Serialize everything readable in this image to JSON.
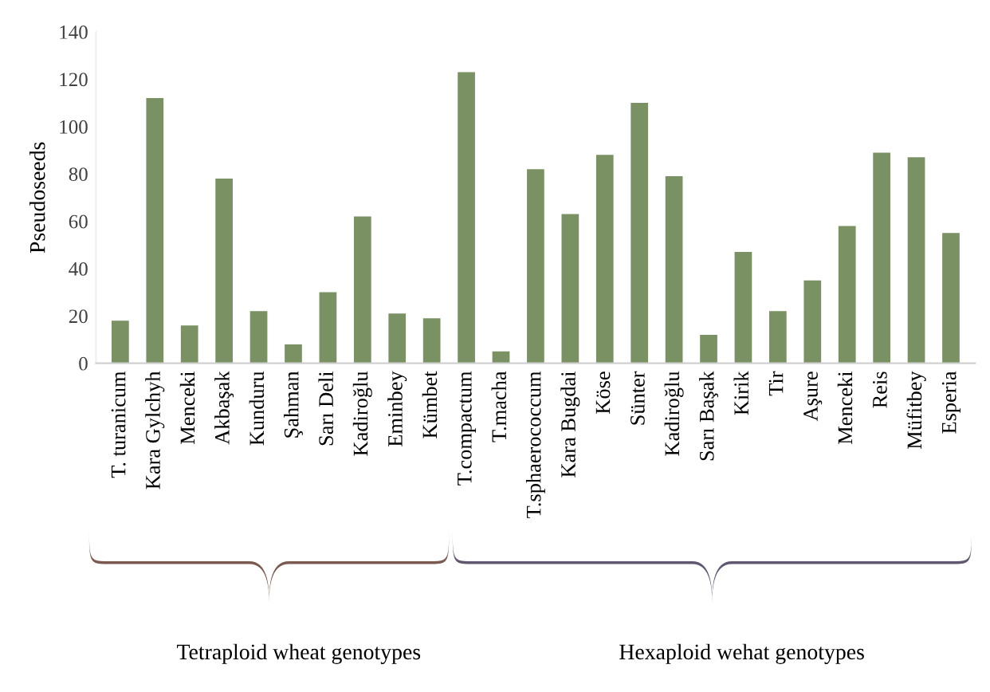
{
  "chart_data": {
    "type": "bar",
    "ylabel": "Pseudoseeds",
    "categories": [
      "T. turanicum",
      "Kara Gylchyh",
      "Menceki",
      "Akbaşak",
      "Kunduru",
      "Şahman",
      "Sarı Deli",
      "Kadiroğlu",
      "Eminbey",
      "Kümbet",
      "T.compactum",
      "T.macha",
      "T.sphaerococcum",
      "Kara Bugdai",
      "Köse",
      "Sünter",
      "Kadiroğlu",
      "Sarı Başak",
      "Kirik",
      "Tir",
      "Aşure",
      "Menceki",
      "Reis",
      "Müfitbey",
      "Esperia"
    ],
    "values": [
      18,
      112,
      16,
      78,
      22,
      8,
      30,
      62,
      21,
      19,
      123,
      5,
      82,
      63,
      88,
      110,
      79,
      12,
      47,
      22,
      35,
      58,
      89,
      87,
      55
    ],
    "color": "#7a9163",
    "ylim": [
      0,
      140
    ],
    "yticks": [
      0,
      20,
      40,
      60,
      80,
      100,
      120,
      140
    ],
    "grid": false,
    "annotations": [
      "Tetraploid wheat genotypes",
      "Hexaploid wehat genotypes"
    ]
  }
}
